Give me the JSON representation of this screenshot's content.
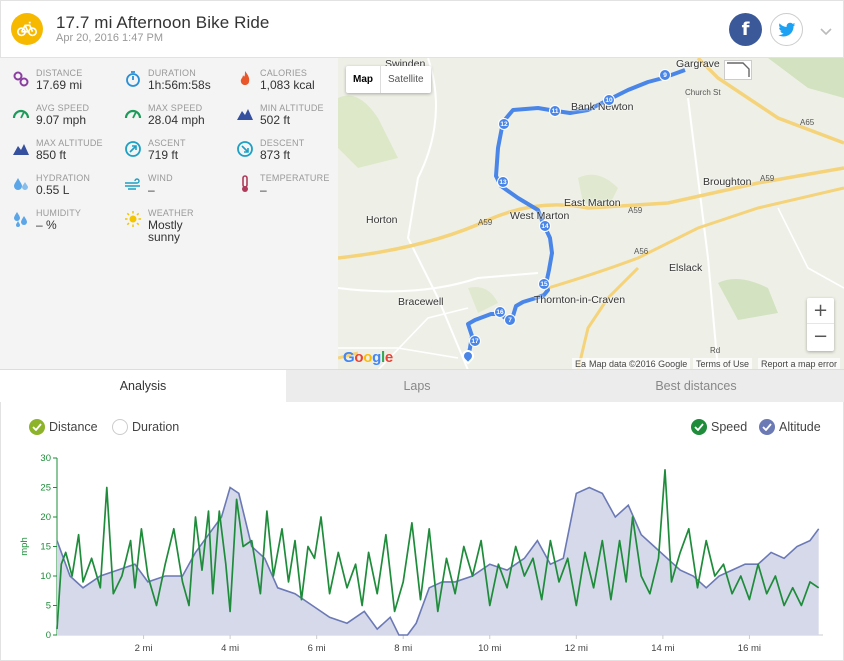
{
  "header": {
    "title": "17.7 mi Afternoon Bike Ride",
    "subtitle": "Apr 20, 2016 1:47 PM",
    "activity_icon": "bike-icon",
    "accent_color": "#f6b900",
    "facebook_label": "f",
    "share_icons": [
      "facebook-icon",
      "twitter-icon",
      "chevron-down-icon"
    ]
  },
  "stats": [
    {
      "key": "distance",
      "label": "DISTANCE",
      "value": "17.69 mi",
      "icon": "distance-icon",
      "color": "#8a3fa0"
    },
    {
      "key": "duration",
      "label": "DURATION",
      "value": "1h:56m:58s",
      "icon": "stopwatch-icon",
      "color": "#2b8fd6"
    },
    {
      "key": "calories",
      "label": "CALORIES",
      "value": "1,083 kcal",
      "icon": "flame-icon",
      "color": "#e8562a"
    },
    {
      "key": "avg_speed",
      "label": "AVG SPEED",
      "value": "9.07 mph",
      "icon": "speedometer-icon",
      "color": "#1d9b5a"
    },
    {
      "key": "max_speed",
      "label": "MAX SPEED",
      "value": "28.04 mph",
      "icon": "speedometer-icon",
      "color": "#1d9b5a"
    },
    {
      "key": "min_altitude",
      "label": "MIN ALTITUDE",
      "value": "502 ft",
      "icon": "mountain-icon",
      "color": "#34509e"
    },
    {
      "key": "max_altitude",
      "label": "MAX ALTITUDE",
      "value": "850 ft",
      "icon": "mountain-icon",
      "color": "#34509e"
    },
    {
      "key": "ascent",
      "label": "ASCENT",
      "value": "719 ft",
      "icon": "ascent-icon",
      "color": "#1da0c4"
    },
    {
      "key": "descent",
      "label": "DESCENT",
      "value": "873 ft",
      "icon": "descent-icon",
      "color": "#1da0c4"
    },
    {
      "key": "hydration",
      "label": "HYDRATION",
      "value": "0.55 L",
      "icon": "water-drop-icon",
      "color": "#5aa6e8"
    },
    {
      "key": "wind",
      "label": "WIND",
      "value": "–",
      "icon": "wind-icon",
      "color": "#1da0c4"
    },
    {
      "key": "temperature",
      "label": "TEMPERATURE",
      "value": "–",
      "icon": "thermometer-icon",
      "color": "#b03a5a"
    },
    {
      "key": "humidity",
      "label": "HUMIDITY",
      "value": "– %",
      "icon": "humidity-drops-icon",
      "color": "#5aa6e8"
    },
    {
      "key": "weather",
      "label": "WEATHER",
      "value": "Mostly",
      "value_line2": "sunny",
      "icon": "sun-icon",
      "color": "#f2c500"
    }
  ],
  "map": {
    "map_type_label": "Map",
    "satellite_label": "Satellite",
    "zoom_in_label": "+",
    "zoom_out_label": "−",
    "google_logo": "Google",
    "attribution_prefix": "Ea",
    "attribution": "Map data ©2016 Google",
    "terms_label": "Terms of Use",
    "report_label": "Report a map error",
    "places": [
      "Swinden",
      "Gargrave",
      "Bank Newton",
      "Broughton",
      "East Marton",
      "West Marton",
      "Horton",
      "Elslack",
      "Bracewell",
      "Thornton-in-Craven"
    ],
    "roads": [
      "A59",
      "A59",
      "A59",
      "A56",
      "A65",
      "Church St",
      "Rd"
    ],
    "route_color": "#4a86e8",
    "route_markers": [
      "9",
      "10",
      "11",
      "12",
      "13",
      "14",
      "15",
      "16",
      "17",
      "7"
    ]
  },
  "tabs": [
    {
      "label": "Analysis",
      "active": true
    },
    {
      "label": "Laps",
      "active": false
    },
    {
      "label": "Best distances",
      "active": false
    }
  ],
  "chart_toggles": {
    "distance": "Distance",
    "duration": "Duration",
    "speed": "Speed",
    "altitude": "Altitude"
  },
  "chart_data": {
    "type": "line",
    "xlabel": "",
    "ylabel": "mph",
    "ylim": [
      0,
      30
    ],
    "xlim": [
      0,
      17.7
    ],
    "yticks": [
      0,
      5,
      10,
      15,
      20,
      25,
      30
    ],
    "xticks": [
      2,
      4,
      6,
      8,
      10,
      12,
      14,
      16
    ],
    "x_tick_labels": [
      "2 mi",
      "4 mi",
      "6 mi",
      "8 mi",
      "10 mi",
      "12 mi",
      "14 mi",
      "16 mi"
    ],
    "speed_color": "#1e8c3a",
    "altitude_color": "#6b79b5",
    "altitude_fill": "#d5d9ea",
    "series": [
      {
        "name": "Speed",
        "x": [
          0,
          0.1,
          0.2,
          0.35,
          0.5,
          0.6,
          0.8,
          1.0,
          1.15,
          1.3,
          1.5,
          1.7,
          1.8,
          1.95,
          2.1,
          2.3,
          2.5,
          2.7,
          2.9,
          3.05,
          3.2,
          3.35,
          3.5,
          3.6,
          3.75,
          3.9,
          4.0,
          4.15,
          4.3,
          4.5,
          4.7,
          4.85,
          5.0,
          5.2,
          5.35,
          5.5,
          5.65,
          5.8,
          5.95,
          6.1,
          6.3,
          6.5,
          6.7,
          6.9,
          7.05,
          7.2,
          7.4,
          7.6,
          7.8,
          8.0,
          8.2,
          8.4,
          8.6,
          8.8,
          9.0,
          9.2,
          9.4,
          9.6,
          9.8,
          10.0,
          10.2,
          10.4,
          10.6,
          10.8,
          11.0,
          11.2,
          11.4,
          11.6,
          11.8,
          12.0,
          12.2,
          12.4,
          12.6,
          12.8,
          13.0,
          13.15,
          13.3,
          13.5,
          13.7,
          13.9,
          14.05,
          14.2,
          14.4,
          14.6,
          14.8,
          15.0,
          15.2,
          15.4,
          15.6,
          15.8,
          16.0,
          16.2,
          16.4,
          16.6,
          16.8,
          17.0,
          17.2,
          17.4,
          17.6
        ],
        "values": [
          1,
          12,
          14,
          10,
          17,
          9,
          13,
          8,
          25,
          7,
          10,
          16,
          8,
          18,
          10,
          5,
          12,
          18,
          9,
          5,
          20,
          11,
          21,
          7,
          21,
          12,
          4,
          23,
          15,
          16,
          7,
          21,
          10,
          18,
          9,
          16,
          6,
          15,
          13,
          20,
          7,
          14,
          8,
          12,
          5,
          14,
          7,
          17,
          4,
          9,
          19,
          6,
          18,
          4,
          13,
          7,
          15,
          10,
          16,
          5,
          12,
          8,
          15,
          10,
          13,
          6,
          16,
          9,
          13,
          5,
          14,
          8,
          16,
          6,
          16,
          9,
          20,
          10,
          7,
          13,
          28,
          9,
          14,
          18,
          8,
          16,
          10,
          12,
          7,
          10,
          6,
          12,
          7,
          10,
          5,
          8,
          5,
          9,
          8
        ]
      },
      {
        "name": "Altitude",
        "x": [
          0,
          0.3,
          0.6,
          1.0,
          1.4,
          1.8,
          2.1,
          2.5,
          2.9,
          3.2,
          3.5,
          3.8,
          4.0,
          4.2,
          4.5,
          4.8,
          5.1,
          5.5,
          5.9,
          6.3,
          6.7,
          7.1,
          7.4,
          7.7,
          7.9,
          8.1,
          8.3,
          8.6,
          8.9,
          9.2,
          9.6,
          10.0,
          10.4,
          10.8,
          11.1,
          11.4,
          11.7,
          12.0,
          12.3,
          12.6,
          12.9,
          13.2,
          13.5,
          13.8,
          14.1,
          14.4,
          14.7,
          15.0,
          15.3,
          15.6,
          15.9,
          16.2,
          16.5,
          16.8,
          17.1,
          17.4,
          17.6
        ],
        "values": [
          16,
          10,
          8,
          10,
          11,
          12,
          9,
          10,
          10,
          14,
          17,
          20,
          25,
          24,
          15,
          13,
          8,
          7,
          5,
          3,
          2,
          4,
          1,
          3,
          0,
          0,
          2,
          8,
          9,
          9,
          10,
          12,
          11,
          13,
          16,
          12,
          13,
          24,
          25,
          24,
          20,
          22,
          17,
          15,
          13,
          11,
          10,
          8,
          10,
          11,
          12,
          12,
          14,
          13,
          15,
          16,
          18
        ]
      }
    ]
  }
}
